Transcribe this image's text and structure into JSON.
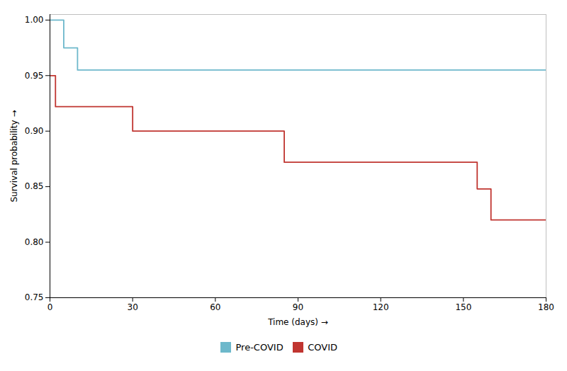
{
  "chart_data": {
    "type": "line",
    "xlabel": "Time (days)",
    "ylabel": "Survival probability",
    "xlim": [
      0,
      180
    ],
    "ylim": [
      0.75,
      1.005
    ],
    "xticks": [
      0,
      30,
      60,
      90,
      120,
      150,
      180
    ],
    "yticks": [
      0.75,
      {
        "value": 0.8,
        "label": "0.80"
      },
      0.85,
      {
        "value": 0.9,
        "label": "0.90"
      },
      0.95,
      {
        "value": 1.0,
        "label": "1.00"
      }
    ],
    "grid": false,
    "legend": "bottom",
    "series": [
      {
        "name": "Pre-COVID",
        "color": "#6db8cb",
        "x": [
          0,
          5,
          5,
          10,
          10,
          20,
          20,
          180
        ],
        "values": [
          1.0,
          1.0,
          0.975,
          0.975,
          0.955,
          0.955,
          0.955,
          0.955
        ]
      },
      {
        "name": "COVID",
        "color": "#c03530",
        "x": [
          0,
          2,
          2,
          30,
          30,
          85,
          85,
          88,
          88,
          155,
          155,
          160,
          160,
          170,
          170,
          180
        ],
        "values": [
          0.95,
          0.95,
          0.922,
          0.922,
          0.9,
          0.9,
          0.872,
          0.872,
          0.872,
          0.872,
          0.848,
          0.848,
          0.82,
          0.82,
          0.82,
          0.82
        ]
      }
    ]
  }
}
